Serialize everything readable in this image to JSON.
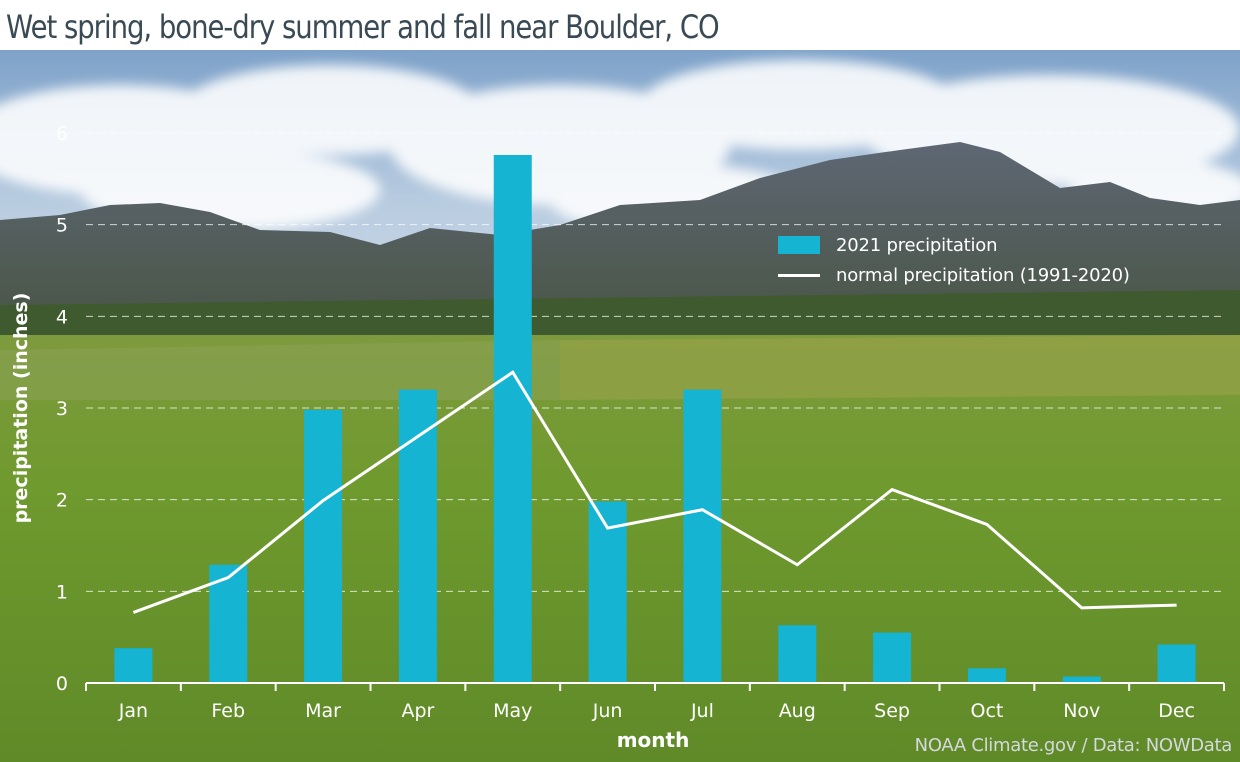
{
  "title": "Wet spring, bone-dry summer and fall near Boulder, CO",
  "credit": "NOAA Climate.gov / Data: NOWData",
  "colors": {
    "bar": "#14b4d2",
    "line": "#ffffff",
    "title": "#3a4a55"
  },
  "chart_data": {
    "type": "bar",
    "categories": [
      "Jan",
      "Feb",
      "Mar",
      "Apr",
      "May",
      "Jun",
      "Jul",
      "Aug",
      "Sep",
      "Oct",
      "Nov",
      "Dec"
    ],
    "series": [
      {
        "name": "2021 precipitation",
        "type": "bar",
        "values": [
          0.38,
          1.29,
          2.98,
          3.2,
          5.76,
          1.98,
          3.2,
          0.63,
          0.55,
          0.16,
          0.07,
          0.42
        ]
      },
      {
        "name": "normal precipitation (1991-2020)",
        "type": "line",
        "values": [
          0.77,
          1.15,
          1.99,
          2.69,
          3.39,
          1.69,
          1.89,
          1.29,
          2.11,
          1.73,
          0.82,
          0.85
        ]
      }
    ],
    "xlabel": "month",
    "ylabel": "precipitation (inches)",
    "ylim": [
      0,
      6
    ],
    "yticks": [
      0,
      1,
      2,
      3,
      4,
      5,
      6
    ],
    "grid": true,
    "legend": "top-right"
  }
}
